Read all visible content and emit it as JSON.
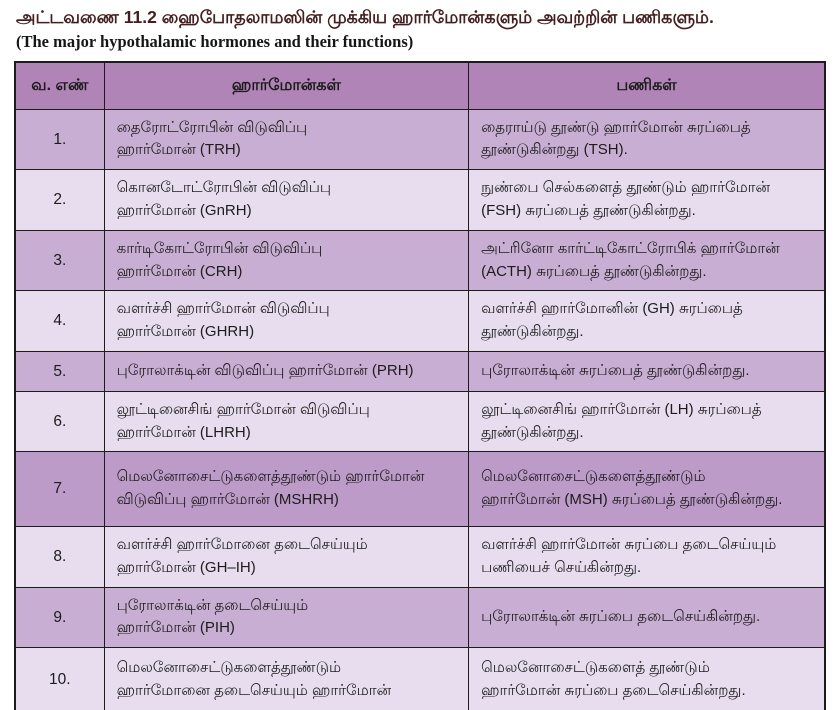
{
  "colors": {
    "title": "#451f1f",
    "text": "#1c1c1c",
    "border": "#1c1c1c",
    "header-bg": "#b184b7",
    "row-odd": "#c9aed3",
    "row-even": "#e7ddee",
    "row-seven": "#bd9bc8"
  },
  "title": {
    "tamil": "அட்டவணை 11.2 ஹைபோதலாமஸின் முக்கிய ஹார்மோன்களும் அவற்றின் பணிகளும்.",
    "english": "(The major hypothalamic hormones and their functions)"
  },
  "table": {
    "headers": [
      "வ. எண்",
      "ஹார்மோன்கள்",
      "பணிகள்"
    ],
    "rows": [
      {
        "no": "1.",
        "hormone": [
          "தைரோட்ரோபின் விடுவிப்பு",
          "ஹார்மோன் (TRH)"
        ],
        "function": [
          "தைராய்டு தூண்டு ஹார்மோன் சுரப்பைத்",
          "தூண்டுகின்றது (TSH)."
        ]
      },
      {
        "no": "2.",
        "hormone": [
          "கொனடோட்ரோபின் விடுவிப்பு",
          "ஹார்மோன் (GnRH)"
        ],
        "function": [
          "நுண்பை செல்களைத் தூண்டும் ஹார்மோன்",
          "(FSH) சுரப்பைத் தூண்டுகின்றது."
        ]
      },
      {
        "no": "3.",
        "hormone": [
          "கார்டிகோட்ரோபின் விடுவிப்பு",
          "ஹார்மோன் (CRH)"
        ],
        "function": [
          "அட்ரினோ கார்ட்டிகோட்ரோபிக் ஹார்மோன்",
          "(ACTH) சுரப்பைத் தூண்டுகின்றது."
        ]
      },
      {
        "no": "4.",
        "hormone": [
          "வளர்ச்சி ஹார்மோன் விடுவிப்பு",
          "ஹார்மோன் (GHRH)"
        ],
        "function": [
          "வளர்ச்சி ஹார்மோனின் (GH) சுரப்பைத்",
          "தூண்டுகின்றது."
        ]
      },
      {
        "no": "5.",
        "hormone": [
          "புரோலாக்டின் விடுவிப்பு ஹார்மோன் (PRH)"
        ],
        "function": [
          "புரோலாக்டின் சுரப்பைத் தூண்டுகின்றது."
        ]
      },
      {
        "no": "6.",
        "hormone": [
          "லூட்டினைசிங் ஹார்மோன் விடுவிப்பு",
          "ஹார்மோன் (LHRH)"
        ],
        "function": [
          "லூட்டினைசிங் ஹார்மோன் (LH) சுரப்பைத்",
          "தூண்டுகின்றது."
        ]
      },
      {
        "no": "7.",
        "hormone": [
          "மெலனோசைட்டுகளைத்தூண்டும் ஹார்மோன்",
          "விடுவிப்பு ஹார்மோன் (MSHRH)"
        ],
        "function": [
          "மெலனோசைட்டுகளைத்தூண்டும்",
          "ஹார்மோன் (MSH) சுரப்பைத் தூண்டுகின்றது."
        ]
      },
      {
        "no": "8.",
        "hormone": [
          "வளர்ச்சி ஹார்மோனை தடைசெய்யும்",
          "ஹார்மோன் (GH–IH)"
        ],
        "function": [
          "வளர்ச்சி ஹார்மோன் சுரப்பை தடைசெய்யும்",
          "பணியைச் செய்கின்றது."
        ]
      },
      {
        "no": "9.",
        "hormone": [
          "புரோலாக்டின் தடைசெய்யும்",
          "ஹார்மோன் (PIH)"
        ],
        "function": [
          "புரோலாக்டின் சுரப்பை தடைசெய்கின்றது."
        ]
      },
      {
        "no": "10.",
        "hormone": [
          "மெலனோசைட்டுகளைத்தூண்டும்",
          "ஹார்மோனை தடைசெய்யும் ஹார்மோன்"
        ],
        "function": [
          "மெலனோசைட்டுகளைத் தூண்டும்",
          "ஹார்மோன் சுரப்பை தடைசெய்கின்றது."
        ]
      }
    ]
  }
}
